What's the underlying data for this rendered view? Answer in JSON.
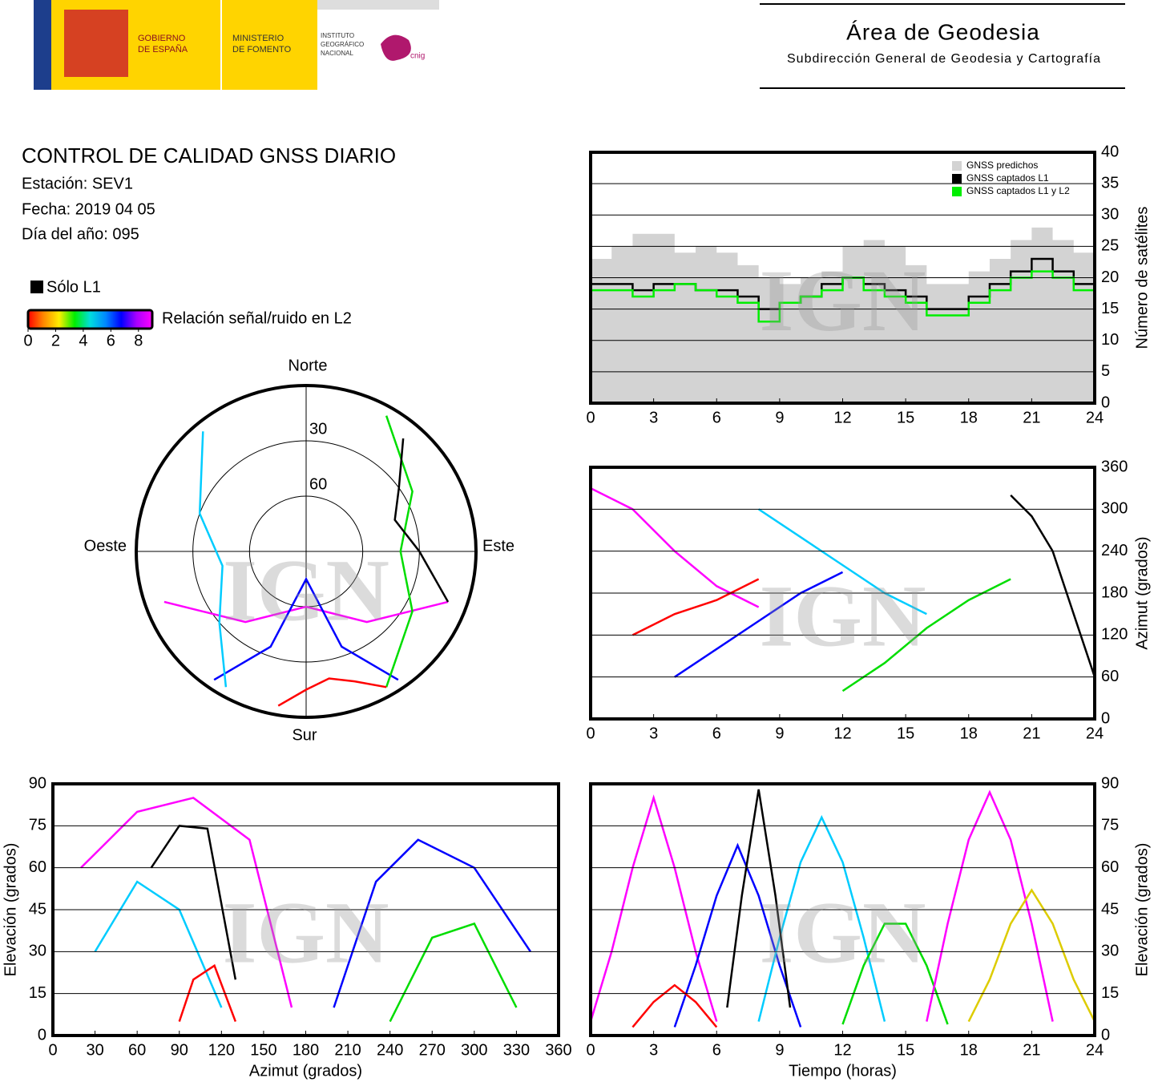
{
  "header": {
    "logo_texts": [
      "GOBIERNO",
      "DE ESPAÑA",
      "MINISTERIO",
      "DE FOMENTO",
      "INSTITUTO",
      "GEOGRÁFICO",
      "NACIONAL",
      "cnig"
    ],
    "area": "Área de Geodesia",
    "subdireccion": "Subdirección General de Geodesia y Cartografía"
  },
  "report": {
    "title": "CONTROL DE CALIDAD GNSS DIARIO",
    "station": "Estación: SEV1",
    "date": "Fecha: 2019 04 05",
    "doy": "Día del año: 095"
  },
  "legend": {
    "l1_only": "Sólo L1",
    "l1_color": "#000000",
    "colorbar_label": "Relación señal/ruido en L2",
    "colorbar_lim": [
      0,
      9
    ],
    "colorbar_ticks": [
      0,
      2,
      4,
      6,
      8
    ],
    "colorbar_colors": [
      "#ff0000",
      "#ff8800",
      "#ffee00",
      "#00ee00",
      "#00dddd",
      "#0088ff",
      "#0000ff",
      "#aa00ff",
      "#ff00ff"
    ]
  },
  "watermark": "IGN",
  "chart_data": [
    {
      "type": "line",
      "step": true,
      "grid": true,
      "y_axis_side": "right",
      "ylabel": "Número de satélites",
      "xlim": [
        0,
        24
      ],
      "xticks": [
        0,
        3,
        6,
        9,
        12,
        15,
        18,
        21,
        24
      ],
      "ylim": [
        0,
        40
      ],
      "yticks": [
        0,
        5,
        10,
        15,
        20,
        25,
        30,
        35,
        40
      ],
      "legend": "upper right",
      "series": [
        {
          "name": "GNSS predichos",
          "color": "#d3d3d3",
          "area": true,
          "x": [
            0,
            1,
            2,
            3,
            4,
            5,
            6,
            7,
            8,
            9,
            10,
            11,
            12,
            13,
            14,
            15,
            16,
            17,
            18,
            19,
            20,
            21,
            22,
            23,
            24
          ],
          "values": [
            23,
            25,
            27,
            27,
            24,
            25,
            24,
            22,
            20,
            19,
            20,
            21,
            25,
            26,
            25,
            22,
            19,
            19,
            21,
            23,
            26,
            28,
            26,
            24,
            22
          ]
        },
        {
          "name": "GNSS captados L1",
          "color": "#000000",
          "x": [
            0,
            1,
            2,
            3,
            4,
            5,
            6,
            7,
            8,
            9,
            10,
            11,
            12,
            13,
            14,
            15,
            16,
            17,
            18,
            19,
            20,
            21,
            22,
            23,
            24
          ],
          "values": [
            19,
            19,
            18,
            19,
            19,
            18,
            18,
            17,
            15,
            16,
            17,
            19,
            20,
            19,
            18,
            17,
            15,
            15,
            17,
            19,
            21,
            23,
            21,
            19,
            18
          ]
        },
        {
          "name": "GNSS captados L1 y L2",
          "color": "#00ee00",
          "x": [
            0,
            1,
            2,
            3,
            4,
            5,
            6,
            7,
            8,
            9,
            10,
            11,
            12,
            13,
            14,
            15,
            16,
            17,
            18,
            19,
            20,
            21,
            22,
            23,
            24
          ],
          "values": [
            18,
            18,
            17,
            18,
            19,
            18,
            17,
            16,
            13,
            16,
            17,
            18,
            20,
            18,
            17,
            16,
            14,
            14,
            16,
            18,
            20,
            21,
            20,
            18,
            17
          ]
        }
      ]
    },
    {
      "type": "polar",
      "rlim": [
        90,
        0
      ],
      "rticks": [
        30,
        60
      ],
      "directions": {
        "north": "Norte",
        "south": "Sur",
        "east": "Este",
        "west": "Oeste"
      },
      "series": [
        {
          "color": "#ff00ff",
          "azimuth": [
            250,
            220,
            180,
            140,
            110
          ],
          "values": [
            10,
            40,
            60,
            40,
            10
          ]
        },
        {
          "color": "#0000ff",
          "azimuth": [
            215,
            200,
            180,
            160,
            145
          ],
          "values": [
            5,
            35,
            75,
            35,
            5
          ]
        },
        {
          "color": "#00ccff",
          "azimuth": [
            320,
            290,
            260,
            230,
            210
          ],
          "values": [
            5,
            30,
            45,
            30,
            5
          ]
        },
        {
          "color": "#00dd00",
          "azimuth": [
            30,
            60,
            90,
            120,
            150
          ],
          "values": [
            5,
            25,
            40,
            25,
            5
          ]
        },
        {
          "color": "#ff0000",
          "azimuth": [
            150,
            160,
            170,
            180,
            190
          ],
          "values": [
            5,
            15,
            20,
            15,
            5
          ]
        },
        {
          "color": "#000000",
          "azimuth": [
            40,
            55,
            70,
            90,
            110
          ],
          "values": [
            10,
            30,
            40,
            30,
            10
          ]
        }
      ]
    },
    {
      "type": "line",
      "grid": true,
      "y_axis_side": "right",
      "ylabel": "Azimut (grados)",
      "xlim": [
        0,
        24
      ],
      "xticks": [
        0,
        3,
        6,
        9,
        12,
        15,
        18,
        21,
        24
      ],
      "ylim": [
        0,
        360
      ],
      "yticks": [
        0,
        60,
        120,
        180,
        240,
        300,
        360
      ],
      "series": [
        {
          "color": "#ff00ff",
          "x": [
            0,
            2,
            4,
            6,
            8
          ],
          "values": [
            330,
            300,
            240,
            190,
            160
          ]
        },
        {
          "color": "#0000ff",
          "x": [
            4,
            6,
            8,
            10,
            12
          ],
          "values": [
            60,
            100,
            140,
            180,
            210
          ]
        },
        {
          "color": "#00ccff",
          "x": [
            8,
            10,
            12,
            14,
            16
          ],
          "values": [
            300,
            260,
            220,
            180,
            150
          ]
        },
        {
          "color": "#00dd00",
          "x": [
            12,
            14,
            16,
            18,
            20
          ],
          "values": [
            40,
            80,
            130,
            170,
            200
          ]
        },
        {
          "color": "#ff0000",
          "x": [
            2,
            4,
            6,
            8
          ],
          "values": [
            120,
            150,
            170,
            200
          ]
        },
        {
          "color": "#000000",
          "x": [
            20,
            21,
            22,
            23,
            24
          ],
          "values": [
            320,
            290,
            240,
            150,
            60
          ]
        }
      ]
    },
    {
      "type": "line",
      "grid": true,
      "y_axis_side": "left",
      "xlabel": "Azimut (grados)",
      "ylabel": "Elevación (grados)",
      "xlim": [
        0,
        360
      ],
      "xticks": [
        0,
        30,
        60,
        90,
        120,
        150,
        180,
        210,
        240,
        270,
        300,
        330,
        360
      ],
      "ylim": [
        0,
        90
      ],
      "yticks": [
        0,
        15,
        30,
        45,
        60,
        75,
        90
      ],
      "series": [
        {
          "color": "#ff00ff",
          "x": [
            20,
            60,
            100,
            140,
            170
          ],
          "values": [
            60,
            80,
            85,
            70,
            10
          ]
        },
        {
          "color": "#0000ff",
          "x": [
            200,
            230,
            260,
            300,
            340
          ],
          "values": [
            10,
            55,
            70,
            60,
            30
          ]
        },
        {
          "color": "#00ccff",
          "x": [
            30,
            60,
            90,
            120
          ],
          "values": [
            30,
            55,
            45,
            10
          ]
        },
        {
          "color": "#00dd00",
          "x": [
            240,
            270,
            300,
            330
          ],
          "values": [
            5,
            35,
            40,
            10
          ]
        },
        {
          "color": "#ff0000",
          "x": [
            90,
            100,
            115,
            130
          ],
          "values": [
            5,
            20,
            25,
            5
          ]
        },
        {
          "color": "#000000",
          "x": [
            70,
            90,
            110,
            130
          ],
          "values": [
            60,
            75,
            74,
            20
          ]
        }
      ]
    },
    {
      "type": "line",
      "grid": true,
      "y_axis_side": "right",
      "xlabel": "Tiempo (horas)",
      "ylabel": "Elevación (grados)",
      "xlim": [
        0,
        24
      ],
      "xticks": [
        0,
        3,
        6,
        9,
        12,
        15,
        18,
        21,
        24
      ],
      "ylim": [
        0,
        90
      ],
      "yticks": [
        0,
        15,
        30,
        45,
        60,
        75,
        90
      ],
      "series": [
        {
          "color": "#ff00ff",
          "x": [
            0,
            1,
            2,
            3,
            4,
            5,
            6
          ],
          "values": [
            5,
            30,
            60,
            85,
            60,
            30,
            5
          ]
        },
        {
          "color": "#0000ff",
          "x": [
            4,
            5,
            6,
            7,
            8,
            9,
            10
          ],
          "values": [
            3,
            25,
            50,
            68,
            50,
            25,
            3
          ]
        },
        {
          "color": "#00ccff",
          "x": [
            8,
            9,
            10,
            11,
            12,
            13,
            14
          ],
          "values": [
            5,
            35,
            62,
            78,
            62,
            35,
            5
          ]
        },
        {
          "color": "#00dd00",
          "x": [
            12,
            13,
            14,
            15,
            16,
            17
          ],
          "values": [
            4,
            25,
            40,
            40,
            25,
            4
          ]
        },
        {
          "color": "#ff0000",
          "x": [
            2,
            3,
            4,
            5,
            6
          ],
          "values": [
            3,
            12,
            18,
            12,
            3
          ]
        },
        {
          "color": "#000000",
          "x": [
            6.5,
            7.2,
            8,
            8.8,
            9.5
          ],
          "values": [
            10,
            50,
            88,
            50,
            10
          ]
        },
        {
          "color": "#ff00ff",
          "x": [
            16,
            17,
            18,
            19,
            20,
            21,
            22
          ],
          "values": [
            5,
            40,
            70,
            87,
            70,
            40,
            5
          ]
        },
        {
          "color": "#ddcc00",
          "x": [
            18,
            19,
            20,
            21,
            22,
            23,
            24
          ],
          "values": [
            5,
            20,
            40,
            52,
            40,
            20,
            5
          ]
        }
      ]
    }
  ]
}
